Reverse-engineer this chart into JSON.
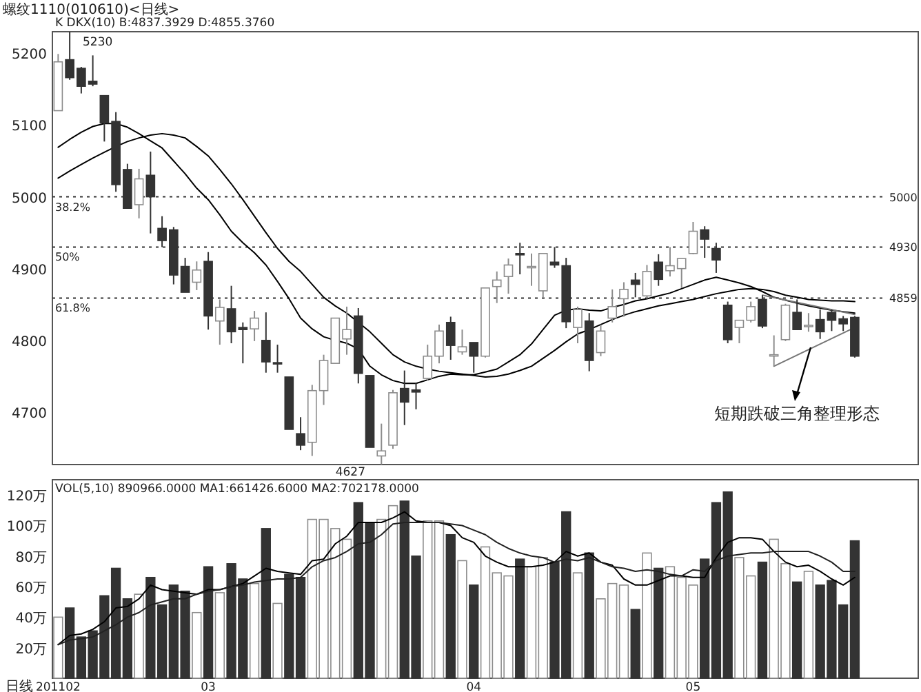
{
  "chart_data": [
    {
      "type": "candlestick",
      "title": "螺纹1110(010610)<日线>",
      "subtitle": "K DKX(10) B:4837.3929 D:4855.3760",
      "categories": [
        null,
        null,
        null,
        null,
        null,
        null,
        null,
        null,
        null,
        null,
        null,
        null,
        null,
        null,
        null,
        null,
        null,
        null,
        null,
        null,
        null,
        null,
        null,
        null,
        null,
        null,
        null,
        null,
        null,
        null,
        null,
        null,
        null,
        null,
        null,
        null,
        null,
        null,
        null,
        null,
        null,
        null,
        null,
        null,
        null,
        null,
        null,
        null,
        null,
        null,
        null,
        null,
        null,
        null,
        null,
        null,
        null,
        null,
        null,
        null,
        null,
        null,
        null,
        null,
        null,
        null,
        null,
        null,
        null,
        null,
        null,
        null,
        null,
        null,
        null
      ],
      "ohlc": [
        [
          5120,
          5199,
          5120,
          5188
        ],
        [
          5191,
          5230,
          5163,
          5166
        ],
        [
          5179,
          5181,
          5144,
          5154
        ],
        [
          5161,
          5197,
          5154,
          5157
        ],
        [
          5141,
          5141,
          5077,
          5103
        ],
        [
          5105,
          5118,
          5007,
          5017
        ],
        [
          5038,
          5046,
          4984,
          4984
        ],
        [
          4989,
          5039,
          4970,
          5025
        ],
        [
          5030,
          5063,
          4949,
          5000
        ],
        [
          4956,
          4973,
          4930,
          4939
        ],
        [
          4954,
          4958,
          4878,
          4891
        ],
        [
          4903,
          4915,
          4867,
          4867
        ],
        [
          4881,
          4910,
          4870,
          4898
        ],
        [
          4910,
          4923,
          4815,
          4834
        ],
        [
          4827,
          4857,
          4794,
          4846
        ],
        [
          4844,
          4876,
          4796,
          4812
        ],
        [
          4818,
          4825,
          4768,
          4815
        ],
        [
          4816,
          4841,
          4799,
          4831
        ],
        [
          4800,
          4839,
          4755,
          4770
        ],
        [
          4769,
          4794,
          4755,
          4768
        ],
        [
          4749,
          4749,
          4676,
          4676
        ],
        [
          4670,
          4693,
          4647,
          4654
        ],
        [
          4658,
          4738,
          4639,
          4730
        ],
        [
          4730,
          4780,
          4710,
          4772
        ],
        [
          4768,
          4831,
          4768,
          4831
        ],
        [
          4802,
          4847,
          4780,
          4815
        ],
        [
          4834,
          4845,
          4740,
          4754
        ],
        [
          4751,
          4751,
          4651,
          4651
        ],
        [
          4639,
          4684,
          4627,
          4646
        ],
        [
          4654,
          4731,
          4649,
          4727
        ],
        [
          4733,
          4758,
          4682,
          4714
        ],
        [
          4731,
          4741,
          4704,
          4728
        ],
        [
          4747,
          4794,
          4744,
          4778
        ],
        [
          4778,
          4822,
          4768,
          4813
        ],
        [
          4825,
          4833,
          4773,
          4793
        ],
        [
          4784,
          4815,
          4780,
          4791
        ],
        [
          4797,
          4797,
          4755,
          4778
        ],
        [
          4778,
          4873,
          4776,
          4873
        ],
        [
          4875,
          4896,
          4852,
          4884
        ],
        [
          4889,
          4914,
          4865,
          4905
        ],
        [
          4921,
          4936,
          4892,
          4920
        ],
        [
          4902,
          4921,
          4876,
          4903
        ],
        [
          4869,
          4921,
          4860,
          4921
        ],
        [
          4909,
          4930,
          4901,
          4905
        ],
        [
          4904,
          4915,
          4817,
          4826
        ],
        [
          4818,
          4847,
          4796,
          4843
        ],
        [
          4827,
          4838,
          4757,
          4772
        ],
        [
          4783,
          4822,
          4778,
          4813
        ],
        [
          4831,
          4871,
          4825,
          4847
        ],
        [
          4858,
          4881,
          4833,
          4871
        ],
        [
          4884,
          4894,
          4860,
          4878
        ],
        [
          4862,
          4905,
          4858,
          4896
        ],
        [
          4909,
          4920,
          4876,
          4885
        ],
        [
          4897,
          4930,
          4889,
          4904
        ],
        [
          4900,
          4914,
          4873,
          4914
        ],
        [
          4921,
          4965,
          4920,
          4952
        ],
        [
          4954,
          4959,
          4915,
          4941
        ],
        [
          4928,
          4936,
          4894,
          4912
        ],
        [
          4849,
          4854,
          4796,
          4801
        ],
        [
          4818,
          4828,
          4796,
          4828
        ],
        [
          4828,
          4854,
          4825,
          4847
        ],
        [
          4857,
          4863,
          4817,
          4820
        ],
        [
          4779,
          4807,
          4764,
          4780
        ],
        [
          4801,
          4851,
          4799,
          4849
        ],
        [
          4839,
          4857,
          4815,
          4815
        ],
        [
          4820,
          4838,
          4812,
          4821
        ],
        [
          4829,
          4843,
          4802,
          4812
        ],
        [
          4839,
          4843,
          4813,
          4828
        ],
        [
          4830,
          4834,
          4813,
          4823
        ],
        [
          4832,
          4834,
          4776,
          4778
        ],
        null,
        null,
        null,
        null,
        null
      ],
      "colors": [
        "#ffffff",
        "#333333",
        "#333333",
        "#333333",
        "#333333",
        "#333333",
        "#333333",
        "#ffffff",
        "#333333",
        "#333333",
        "#333333",
        "#333333",
        "#ffffff",
        "#333333",
        "#ffffff",
        "#333333",
        "#333333",
        "#ffffff",
        "#333333",
        "#333333",
        "#333333",
        "#333333",
        "#ffffff",
        "#ffffff",
        "#ffffff",
        "#ffffff",
        "#333333",
        "#333333",
        "#ffffff",
        "#ffffff",
        "#333333",
        "#333333",
        "#ffffff",
        "#ffffff",
        "#333333",
        "#ffffff",
        "#333333",
        "#ffffff",
        "#ffffff",
        "#ffffff",
        "#333333",
        "#ffffff",
        "#ffffff",
        "#333333",
        "#333333",
        "#ffffff",
        "#333333",
        "#ffffff",
        "#ffffff",
        "#ffffff",
        "#333333",
        "#ffffff",
        "#333333",
        "#ffffff",
        "#ffffff",
        "#ffffff",
        "#333333",
        "#333333",
        "#333333",
        "#ffffff",
        "#ffffff",
        "#333333",
        "#ffffff",
        "#ffffff",
        "#333333",
        "#ffffff",
        "#333333",
        "#333333",
        "#333333",
        "#333333",
        null,
        null,
        null,
        null,
        null
      ],
      "series": [
        {
          "type": "line",
          "color": "#000000",
          "values": [
            5069,
            5080,
            5090,
            5098,
            5102,
            5102,
            5097,
            5088,
            5078,
            5068,
            5050,
            5032,
            5012,
            4996,
            4975,
            4952,
            4936,
            4922,
            4905,
            4882,
            4858,
            4831,
            4816,
            4805,
            4800,
            4796,
            4788,
            4764,
            4752,
            4744,
            4740,
            4740,
            4745,
            4750,
            4753,
            4752,
            4752,
            4756,
            4760,
            4770,
            4780,
            4795,
            4815,
            4835,
            4842,
            4844,
            4842,
            4841,
            4846,
            4850,
            4855,
            4858,
            4862,
            4866,
            4872,
            4878,
            4884,
            4888,
            4884,
            4880,
            4875,
            4868,
            4860,
            4856,
            4852,
            4848,
            4845,
            4842,
            4840,
            4838,
            null,
            null,
            null,
            null,
            null
          ]
        },
        {
          "type": "line",
          "color": "#000000",
          "values": [
            5026,
            5036,
            5045,
            5054,
            5062,
            5070,
            5077,
            5082,
            5086,
            5088,
            5086,
            5082,
            5070,
            5057,
            5038,
            5018,
            4996,
            4973,
            4950,
            4928,
            4910,
            4896,
            4878,
            4860,
            4848,
            4838,
            4825,
            4812,
            4796,
            4780,
            4770,
            4764,
            4760,
            4757,
            4755,
            4753,
            4751,
            4749,
            4750,
            4753,
            4758,
            4764,
            4775,
            4786,
            4798,
            4809,
            4815,
            4822,
            4829,
            4835,
            4840,
            4844,
            4848,
            4851,
            4854,
            4857,
            4861,
            4865,
            4868,
            4871,
            4872,
            4871,
            4868,
            4863,
            4860,
            4857,
            4856,
            4855,
            4855,
            4854,
            null,
            null,
            null,
            null,
            null
          ]
        },
        {
          "type": "line",
          "color": "#777777",
          "values": [
            null,
            null,
            null,
            null,
            null,
            null,
            null,
            null,
            null,
            null,
            null,
            null,
            null,
            null,
            null,
            null,
            null,
            null,
            null,
            null,
            null,
            null,
            null,
            null,
            null,
            null,
            null,
            null,
            null,
            null,
            null,
            null,
            null,
            null,
            null,
            null,
            null,
            null,
            null,
            null,
            null,
            null,
            null,
            null,
            null,
            null,
            null,
            null,
            null,
            null,
            null,
            null,
            null,
            null,
            null,
            null,
            null,
            null,
            null,
            null,
            null,
            4863,
            null,
            null,
            null,
            null,
            null,
            null,
            null,
            4836,
            null,
            null,
            null,
            null,
            null
          ]
        },
        {
          "type": "line",
          "color": "#777777",
          "values": [
            null,
            null,
            null,
            null,
            null,
            null,
            null,
            null,
            null,
            null,
            null,
            null,
            null,
            null,
            null,
            null,
            null,
            null,
            null,
            null,
            null,
            null,
            null,
            null,
            null,
            null,
            null,
            null,
            null,
            null,
            null,
            null,
            null,
            null,
            null,
            null,
            null,
            null,
            null,
            null,
            null,
            null,
            null,
            null,
            null,
            null,
            null,
            null,
            null,
            null,
            null,
            null,
            null,
            null,
            null,
            null,
            null,
            null,
            null,
            null,
            null,
            null,
            4764,
            null,
            null,
            null,
            null,
            null,
            null,
            4818,
            null,
            null,
            null,
            null,
            null
          ]
        }
      ],
      "ylim": [
        4627,
        5230
      ],
      "yticks": [
        4700,
        4800,
        4900,
        5000,
        5100,
        5200
      ],
      "ref_lines": [
        {
          "axis": "y",
          "value": 5000,
          "label": "5000",
          "line_style": "dotted"
        },
        {
          "axis": "y",
          "value": 4930,
          "label": "4930",
          "line_style": "dotted"
        },
        {
          "axis": "y",
          "value": 4859,
          "label": "4859",
          "line_style": "dotted"
        }
      ],
      "annotations": [
        "5230",
        "4627",
        {
          "text": "38.2%",
          "y": 5000
        },
        {
          "text": "50%",
          "y": 4930
        },
        {
          "text": "61.8%",
          "y": 4859
        },
        "短期跌破三角整理形态"
      ],
      "tick_labels": "y"
    },
    {
      "type": "bar",
      "subtitle": "VOL(5,10) 890966.0000 MA1:661426.6000 MA2:702178.0000",
      "categories": [
        "201102",
        null,
        null,
        null,
        null,
        null,
        null,
        null,
        null,
        null,
        null,
        null,
        null,
        "03",
        null,
        null,
        null,
        null,
        null,
        null,
        null,
        null,
        null,
        null,
        null,
        null,
        null,
        null,
        null,
        null,
        null,
        null,
        null,
        null,
        null,
        null,
        "04",
        null,
        null,
        null,
        null,
        null,
        null,
        null,
        null,
        null,
        null,
        null,
        null,
        null,
        null,
        null,
        null,
        null,
        null,
        "05",
        null,
        null,
        null,
        null,
        null,
        null,
        null,
        null,
        null,
        null,
        null,
        null,
        null,
        null,
        null,
        null,
        null,
        null,
        null
      ],
      "series": [
        {
          "type": "bar",
          "colors": [
            "#ffffff",
            "#333333",
            "#333333",
            "#333333",
            "#333333",
            "#333333",
            "#333333",
            "#ffffff",
            "#333333",
            "#333333",
            "#333333",
            "#333333",
            "#ffffff",
            "#333333",
            "#ffffff",
            "#333333",
            "#333333",
            "#ffffff",
            "#333333",
            "#ffffff",
            "#333333",
            "#333333",
            "#ffffff",
            "#ffffff",
            "#ffffff",
            "#ffffff",
            "#333333",
            "#333333",
            "#ffffff",
            "#ffffff",
            "#333333",
            "#333333",
            "#ffffff",
            "#ffffff",
            "#333333",
            "#ffffff",
            "#333333",
            "#ffffff",
            "#ffffff",
            "#ffffff",
            "#333333",
            "#ffffff",
            "#ffffff",
            "#333333",
            "#333333",
            "#ffffff",
            "#333333",
            "#ffffff",
            "#ffffff",
            "#ffffff",
            "#333333",
            "#ffffff",
            "#333333",
            "#ffffff",
            "#ffffff",
            "#ffffff",
            "#333333",
            "#333333",
            "#333333",
            "#ffffff",
            "#ffffff",
            "#333333",
            "#ffffff",
            "#ffffff",
            "#333333",
            "#ffffff",
            "#333333",
            "#333333",
            "#333333",
            "#333333",
            null,
            null,
            null,
            null,
            null
          ],
          "values": [
            40,
            46,
            27,
            31,
            54,
            72,
            52,
            55,
            66,
            48,
            61,
            57,
            43,
            73,
            56,
            75,
            65,
            62,
            98,
            49,
            68,
            66,
            104,
            104,
            98,
            91,
            115,
            102,
            104,
            113,
            116,
            80,
            103,
            103,
            94,
            77,
            61,
            86,
            69,
            67,
            78,
            73,
            79,
            76,
            109,
            69,
            82,
            52,
            62,
            61,
            45,
            82,
            72,
            73,
            66,
            61,
            78,
            115,
            122,
            79,
            67,
            76,
            91,
            75,
            63,
            70,
            61,
            64,
            48,
            90,
            null,
            null,
            null,
            null,
            null
          ]
        },
        {
          "type": "line",
          "color": "#000000",
          "values": [
            22,
            28,
            29,
            32,
            37,
            46,
            47,
            52,
            61,
            58,
            57,
            56,
            55,
            58,
            58,
            60,
            62,
            67,
            72,
            70,
            69,
            68,
            77,
            78,
            88,
            93,
            102,
            102,
            102,
            105,
            109,
            103,
            102,
            102,
            100,
            92,
            89,
            80,
            76,
            73,
            73,
            73,
            74,
            76,
            83,
            80,
            82,
            76,
            74,
            65,
            61,
            61,
            64,
            67,
            67,
            66,
            66,
            79,
            89,
            92,
            92,
            91,
            83,
            76,
            73,
            74,
            70,
            65,
            61,
            66,
            null,
            null,
            null,
            null,
            null
          ]
        },
        {
          "type": "line",
          "color": "#222222",
          "values": [
            22,
            25,
            26,
            27,
            31,
            35,
            40,
            43,
            48,
            50,
            52,
            52,
            55,
            57,
            58,
            60,
            61,
            63,
            64,
            65,
            65,
            66,
            73,
            77,
            79,
            83,
            88,
            89,
            94,
            101,
            102,
            102,
            102,
            102,
            101,
            100,
            97,
            94,
            89,
            85,
            82,
            80,
            79,
            76,
            78,
            77,
            79,
            76,
            73,
            72,
            70,
            71,
            70,
            68,
            67,
            71,
            70,
            77,
            80,
            81,
            82,
            82,
            83,
            83,
            83,
            83,
            80,
            76,
            70,
            70,
            null,
            null,
            null,
            null,
            null
          ]
        }
      ],
      "ylim": [
        0,
        130
      ],
      "yticks": [
        {
          "value": 20,
          "label": "20万"
        },
        {
          "value": 40,
          "label": "40万"
        },
        {
          "value": 60,
          "label": "60万"
        },
        {
          "value": 80,
          "label": "80万"
        },
        {
          "value": 100,
          "label": "100万"
        },
        {
          "value": 120,
          "label": "120万"
        }
      ],
      "annotations": [
        "日线"
      ]
    }
  ]
}
